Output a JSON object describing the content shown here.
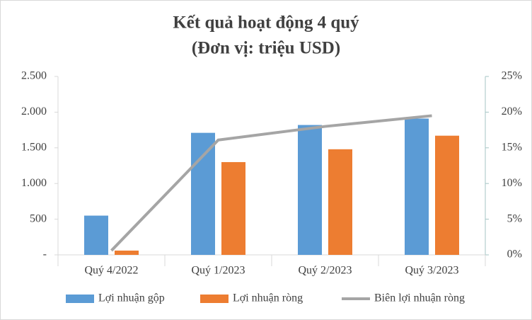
{
  "chart_data": {
    "type": "bar",
    "title": "Kết quả hoạt động 4 quý",
    "subtitle": "(Đơn vị: triệu USD)",
    "categories": [
      "Quý 4/2022",
      "Quý 1/2023",
      "Quý 2/2023",
      "Quý 3/2023"
    ],
    "series": [
      {
        "name": "Lợi nhuận gộp",
        "color": "#5b9bd5",
        "values": [
          550,
          1710,
          1820,
          1910
        ]
      },
      {
        "name": "Lợi nhuận ròng",
        "color": "#ed7d31",
        "values": [
          60,
          1300,
          1480,
          1670
        ]
      },
      {
        "name": "Biên lợi nhuận ròng",
        "color": "#a5a5a5",
        "type": "line",
        "axis": "y2",
        "values": [
          0.6,
          16.1,
          18,
          19.5
        ]
      }
    ],
    "ylim": [
      0,
      2500
    ],
    "yticks": [
      {
        "value": 0,
        "label": "-"
      },
      500,
      {
        "value": 1000,
        "label": "1.000"
      },
      {
        "value": 1500,
        "label": "1.500"
      },
      {
        "value": 2000,
        "label": "2.000"
      },
      {
        "value": 2500,
        "label": "2.500"
      }
    ],
    "y2lim": [
      0,
      25
    ],
    "y2ticks": [
      {
        "value": 0,
        "label": "0%"
      },
      {
        "value": 5,
        "label": "5%"
      },
      {
        "value": 10,
        "label": "10%"
      },
      {
        "value": 15,
        "label": "15%"
      },
      {
        "value": 20,
        "label": "20%"
      },
      {
        "value": 25,
        "label": "25%"
      }
    ],
    "legend": "bottom"
  }
}
